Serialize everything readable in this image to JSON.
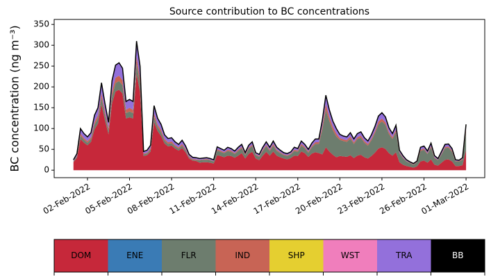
{
  "chart_data": {
    "type": "stacked_area",
    "title": "Source contribution to BC concentrations",
    "ylabel": "BC concentration (ng m⁻³)",
    "xlim": [
      "2022-01-30T15:00",
      "2022-03-02T08:00"
    ],
    "xticks": [
      {
        "value": "2022-02-02",
        "label": "02-Feb-2022"
      },
      {
        "value": "2022-02-05",
        "label": "05-Feb-2022"
      },
      {
        "value": "2022-02-08",
        "label": "08-Feb-2022"
      },
      {
        "value": "2022-02-11",
        "label": "11-Feb-2022"
      },
      {
        "value": "2022-02-14",
        "label": "14-Feb-2022"
      },
      {
        "value": "2022-02-17",
        "label": "17-Feb-2022"
      },
      {
        "value": "2022-02-20",
        "label": "20-Feb-2022"
      },
      {
        "value": "2022-02-23",
        "label": "23-Feb-2022"
      },
      {
        "value": "2022-02-26",
        "label": "26-Feb-2022"
      },
      {
        "value": "2022-03-01",
        "label": "01-Mar-2022"
      }
    ],
    "ylim": [
      -18,
      362
    ],
    "yticks": [
      0,
      50,
      100,
      150,
      200,
      250,
      300,
      350
    ],
    "outline_color": "#000000",
    "x": [
      "2022-02-01T00:00",
      "2022-02-01T06:00",
      "2022-02-01T12:00",
      "2022-02-01T18:00",
      "2022-02-02T00:00",
      "2022-02-02T06:00",
      "2022-02-02T12:00",
      "2022-02-02T18:00",
      "2022-02-03T00:00",
      "2022-02-03T06:00",
      "2022-02-03T12:00",
      "2022-02-03T18:00",
      "2022-02-04T00:00",
      "2022-02-04T06:00",
      "2022-02-04T12:00",
      "2022-02-04T18:00",
      "2022-02-05T00:00",
      "2022-02-05T06:00",
      "2022-02-05T12:00",
      "2022-02-05T18:00",
      "2022-02-06T00:00",
      "2022-02-06T06:00",
      "2022-02-06T12:00",
      "2022-02-06T18:00",
      "2022-02-07T00:00",
      "2022-02-07T06:00",
      "2022-02-07T12:00",
      "2022-02-07T18:00",
      "2022-02-08T00:00",
      "2022-02-08T06:00",
      "2022-02-08T12:00",
      "2022-02-08T18:00",
      "2022-02-09T00:00",
      "2022-02-09T06:00",
      "2022-02-09T12:00",
      "2022-02-09T18:00",
      "2022-02-10T00:00",
      "2022-02-10T06:00",
      "2022-02-10T12:00",
      "2022-02-10T18:00",
      "2022-02-11T00:00",
      "2022-02-11T06:00",
      "2022-02-11T12:00",
      "2022-02-11T18:00",
      "2022-02-12T00:00",
      "2022-02-12T06:00",
      "2022-02-12T12:00",
      "2022-02-12T18:00",
      "2022-02-13T00:00",
      "2022-02-13T06:00",
      "2022-02-13T12:00",
      "2022-02-13T18:00",
      "2022-02-14T00:00",
      "2022-02-14T06:00",
      "2022-02-14T12:00",
      "2022-02-14T18:00",
      "2022-02-15T00:00",
      "2022-02-15T06:00",
      "2022-02-15T12:00",
      "2022-02-15T18:00",
      "2022-02-16T00:00",
      "2022-02-16T06:00",
      "2022-02-16T12:00",
      "2022-02-16T18:00",
      "2022-02-17T00:00",
      "2022-02-17T06:00",
      "2022-02-17T12:00",
      "2022-02-17T18:00",
      "2022-02-18T00:00",
      "2022-02-18T06:00",
      "2022-02-18T12:00",
      "2022-02-18T18:00",
      "2022-02-19T00:00",
      "2022-02-19T06:00",
      "2022-02-19T12:00",
      "2022-02-19T18:00",
      "2022-02-20T00:00",
      "2022-02-20T06:00",
      "2022-02-20T12:00",
      "2022-02-20T18:00",
      "2022-02-21T00:00",
      "2022-02-21T06:00",
      "2022-02-21T12:00",
      "2022-02-21T18:00",
      "2022-02-22T00:00",
      "2022-02-22T06:00",
      "2022-02-22T12:00",
      "2022-02-22T18:00",
      "2022-02-23T00:00",
      "2022-02-23T06:00",
      "2022-02-23T12:00",
      "2022-02-23T18:00",
      "2022-02-24T00:00",
      "2022-02-24T06:00",
      "2022-02-24T12:00",
      "2022-02-24T18:00",
      "2022-02-25T00:00",
      "2022-02-25T06:00",
      "2022-02-25T12:00",
      "2022-02-25T18:00",
      "2022-02-26T00:00",
      "2022-02-26T06:00",
      "2022-02-26T12:00",
      "2022-02-26T18:00",
      "2022-02-27T00:00",
      "2022-02-27T06:00",
      "2022-02-27T12:00",
      "2022-02-27T18:00",
      "2022-02-28T00:00",
      "2022-02-28T06:00",
      "2022-02-28T12:00",
      "2022-02-28T18:00",
      "2022-03-01T00:00"
    ],
    "series": [
      {
        "name": "DOM",
        "color": "#c6283a",
        "values": [
          19,
          30,
          75,
          66,
          60,
          68,
          98,
          112,
          158,
          120,
          86,
          161,
          189,
          193,
          184,
          124,
          127,
          124,
          232,
          187,
          34,
          36,
          45,
          116,
          94,
          82,
          64,
          57,
          59,
          52,
          47,
          53,
          43,
          28,
          23,
          22,
          18,
          19,
          19,
          18,
          16,
          36,
          34,
          31,
          35,
          34,
          30,
          35,
          41,
          28,
          39,
          44,
          28,
          24,
          35,
          44,
          35,
          45,
          35,
          31,
          28,
          26,
          29,
          35,
          34,
          45,
          41,
          32,
          40,
          43,
          41,
          38,
          55,
          45,
          37,
          31,
          34,
          33,
          32,
          36,
          29,
          35,
          37,
          31,
          28,
          34,
          42,
          52,
          55,
          51,
          41,
          35,
          43,
          19,
          13,
          10,
          8,
          6,
          9,
          21,
          23,
          18,
          26,
          13,
          11,
          18,
          25,
          26,
          21,
          10,
          10,
          12,
          48
        ]
      },
      {
        "name": "ENE",
        "color": "#3a7bb5",
        "values": [
          0,
          0,
          0,
          0,
          0,
          0,
          0,
          0,
          0,
          0,
          0,
          0,
          0,
          0,
          0,
          0,
          0,
          0,
          0,
          0,
          0,
          0,
          0,
          0,
          0,
          0,
          0,
          0,
          0,
          0,
          0,
          0,
          0,
          0,
          0,
          0,
          0,
          0,
          0,
          0,
          0,
          0,
          0,
          0,
          0,
          0,
          0,
          0,
          0,
          0,
          0,
          0,
          0,
          0,
          0,
          0,
          0,
          0,
          0,
          0,
          0,
          0,
          0,
          0,
          0,
          0,
          0,
          0,
          0,
          0,
          0,
          0,
          0,
          0,
          0,
          0,
          0,
          0,
          0,
          0,
          0,
          0,
          0,
          0,
          0,
          0,
          0,
          0,
          0,
          0,
          0,
          0,
          0,
          0,
          0,
          0,
          0,
          0,
          0,
          0,
          0,
          0,
          0,
          0,
          0,
          0,
          0,
          0,
          0,
          0,
          0,
          0,
          0
        ]
      },
      {
        "name": "FLR",
        "color": "#6d7d6e",
        "values": [
          2,
          3,
          8,
          7,
          6,
          7,
          11,
          12,
          17,
          13,
          9,
          17,
          20,
          21,
          20,
          13,
          14,
          13,
          25,
          20,
          4,
          4,
          5,
          12,
          10,
          9,
          7,
          6,
          6,
          5,
          5,
          6,
          5,
          3,
          2,
          2,
          6,
          6,
          6,
          6,
          5,
          11,
          10,
          10,
          11,
          10,
          9,
          11,
          12,
          8,
          12,
          14,
          8,
          8,
          11,
          14,
          11,
          14,
          11,
          10,
          8,
          8,
          9,
          11,
          10,
          14,
          12,
          10,
          15,
          20,
          22,
          60,
          90,
          73,
          59,
          50,
          39,
          37,
          36,
          40,
          34,
          40,
          41,
          35,
          31,
          38,
          47,
          58,
          62,
          58,
          46,
          40,
          49,
          22,
          16,
          11,
          9,
          7,
          10,
          25,
          26,
          21,
          29,
          16,
          13,
          20,
          28,
          28,
          23,
          11,
          11,
          13,
          45
        ]
      },
      {
        "name": "IND",
        "color": "#c86455",
        "values": [
          1,
          2,
          5,
          4,
          4,
          4,
          7,
          8,
          10,
          8,
          6,
          11,
          13,
          13,
          12,
          8,
          9,
          8,
          16,
          13,
          2,
          2,
          3,
          8,
          6,
          6,
          4,
          4,
          4,
          3,
          3,
          4,
          3,
          2,
          2,
          2,
          1,
          1,
          2,
          1,
          1,
          3,
          3,
          2,
          3,
          3,
          2,
          3,
          3,
          2,
          3,
          3,
          2,
          2,
          3,
          3,
          3,
          4,
          3,
          2,
          2,
          2,
          2,
          3,
          3,
          4,
          3,
          3,
          3,
          4,
          4,
          8,
          13,
          10,
          8,
          7,
          4,
          4,
          4,
          5,
          4,
          4,
          5,
          4,
          4,
          4,
          5,
          7,
          7,
          6,
          5,
          4,
          5,
          2,
          2,
          1,
          1,
          1,
          1,
          3,
          3,
          2,
          3,
          2,
          1,
          2,
          3,
          3,
          3,
          1,
          1,
          2,
          6
        ]
      },
      {
        "name": "SHP",
        "color": "#e5cf30",
        "values": [
          0,
          0,
          0,
          0,
          0,
          0,
          0,
          0,
          0,
          0,
          0,
          0,
          0,
          0,
          0,
          0,
          0,
          0,
          0,
          0,
          0,
          0,
          0,
          0,
          0,
          0,
          0,
          0,
          0,
          0,
          0,
          0,
          0,
          0,
          0,
          0,
          0,
          0,
          0,
          0,
          0,
          0,
          0,
          0,
          0,
          0,
          0,
          0,
          0,
          0,
          0,
          0,
          0,
          0,
          0,
          0,
          0,
          0,
          0,
          0,
          0,
          0,
          0,
          0,
          0,
          0,
          0,
          0,
          0,
          0,
          0,
          0,
          0,
          0,
          0,
          0,
          0,
          0,
          0,
          0,
          0,
          0,
          0,
          0,
          0,
          0,
          0,
          0,
          0,
          0,
          0,
          0,
          0,
          0,
          0,
          0,
          0,
          0,
          0,
          0,
          0,
          0,
          0,
          0,
          0,
          0,
          0,
          0,
          0,
          0,
          0,
          0,
          0
        ]
      },
      {
        "name": "WST",
        "color": "#f07ebc",
        "values": [
          0,
          0,
          0,
          0,
          0,
          0,
          0,
          0,
          0,
          0,
          0,
          0,
          0,
          0,
          0,
          0,
          0,
          0,
          0,
          0,
          0,
          0,
          0,
          0,
          0,
          0,
          0,
          0,
          0,
          0,
          0,
          0,
          0,
          0,
          0,
          0,
          0,
          0,
          0,
          0,
          0,
          0,
          0,
          0,
          0,
          0,
          0,
          0,
          0,
          0,
          0,
          0,
          0,
          0,
          0,
          0,
          0,
          0,
          0,
          0,
          0,
          0,
          0,
          0,
          0,
          0,
          0,
          0,
          0,
          0,
          0,
          0,
          0,
          0,
          0,
          0,
          0,
          0,
          0,
          0,
          0,
          0,
          0,
          0,
          0,
          0,
          0,
          0,
          0,
          0,
          0,
          0,
          0,
          0,
          0,
          0,
          0,
          0,
          0,
          0,
          0,
          0,
          0,
          0,
          0,
          0,
          0,
          0,
          0,
          0,
          0,
          0,
          0
        ]
      },
      {
        "name": "TRA",
        "color": "#9370db",
        "values": [
          3,
          5,
          12,
          11,
          10,
          11,
          16,
          18,
          25,
          19,
          14,
          26,
          30,
          31,
          29,
          20,
          20,
          20,
          37,
          30,
          5,
          6,
          7,
          19,
          15,
          13,
          10,
          9,
          9,
          8,
          7,
          9,
          7,
          5,
          4,
          4,
          3,
          3,
          3,
          3,
          3,
          6,
          5,
          5,
          6,
          5,
          5,
          6,
          6,
          4,
          6,
          7,
          4,
          4,
          6,
          7,
          6,
          7,
          6,
          5,
          4,
          4,
          4,
          6,
          5,
          7,
          6,
          5,
          7,
          8,
          8,
          14,
          22,
          17,
          14,
          12,
          9,
          8,
          8,
          9,
          8,
          9,
          9,
          8,
          7,
          9,
          11,
          13,
          14,
          13,
          10,
          9,
          11,
          5,
          4,
          3,
          2,
          2,
          2,
          6,
          6,
          5,
          7,
          4,
          3,
          5,
          6,
          6,
          5,
          3,
          2,
          3,
          11
        ]
      },
      {
        "name": "BB",
        "color": "#000000",
        "values": [
          0,
          0,
          0,
          0,
          0,
          0,
          0,
          0,
          0,
          0,
          0,
          0,
          0,
          0,
          0,
          0,
          0,
          0,
          0,
          0,
          0,
          0,
          0,
          0,
          0,
          0,
          0,
          0,
          0,
          0,
          0,
          0,
          0,
          0,
          0,
          0,
          0,
          0,
          0,
          0,
          0,
          0,
          0,
          0,
          0,
          0,
          0,
          0,
          0,
          0,
          0,
          0,
          0,
          0,
          0,
          0,
          0,
          0,
          0,
          0,
          0,
          0,
          0,
          0,
          0,
          0,
          0,
          0,
          0,
          0,
          0,
          0,
          0,
          0,
          0,
          0,
          0,
          0,
          0,
          0,
          0,
          0,
          0,
          0,
          0,
          0,
          0,
          0,
          0,
          0,
          0,
          0,
          0,
          0,
          0,
          0,
          0,
          0,
          0,
          0,
          0,
          0,
          0,
          0,
          0,
          0,
          0,
          0,
          0,
          0,
          0,
          0,
          0
        ]
      }
    ]
  }
}
